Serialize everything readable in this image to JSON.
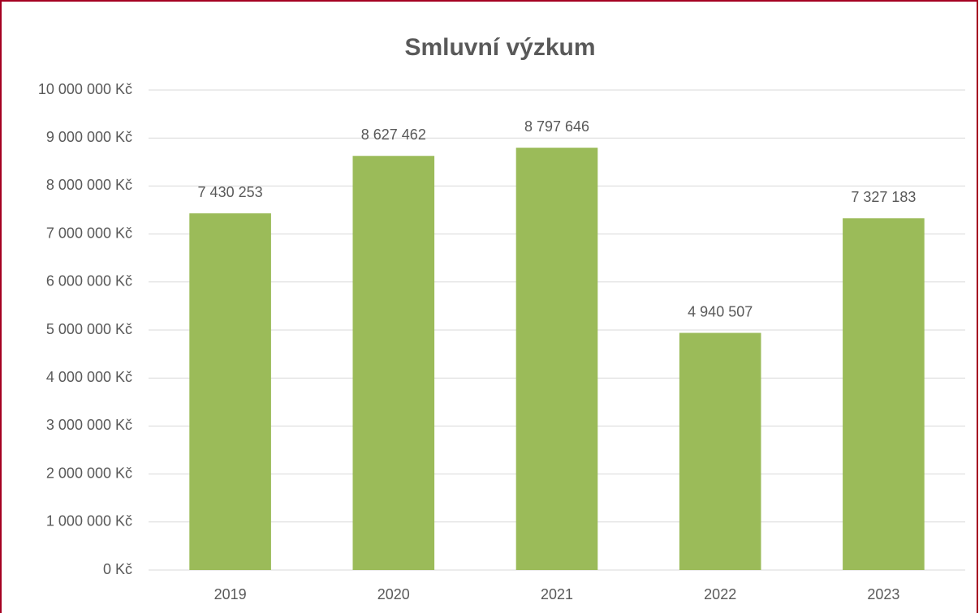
{
  "chart_data": {
    "type": "bar",
    "title": "Smluvní výzkum",
    "categories": [
      "2019",
      "2020",
      "2021",
      "2022",
      "2023"
    ],
    "values": [
      7430253,
      8627462,
      8797646,
      4940507,
      7327183
    ],
    "value_labels": [
      "7 430 253",
      "8 627 462",
      "8 797 646",
      "4 940 507",
      "7 327 183"
    ],
    "color": "#9bbb59",
    "ylim": [
      0,
      10000000
    ],
    "yticks": [
      {
        "value": 0,
        "label": "0 Kč"
      },
      {
        "value": 1000000,
        "label": "1 000 000 Kč"
      },
      {
        "value": 2000000,
        "label": "2 000 000 Kč"
      },
      {
        "value": 3000000,
        "label": "3 000 000 Kč"
      },
      {
        "value": 4000000,
        "label": "4 000 000 Kč"
      },
      {
        "value": 5000000,
        "label": "5 000 000 Kč"
      },
      {
        "value": 6000000,
        "label": "6 000 000 Kč"
      },
      {
        "value": 7000000,
        "label": "7 000 000 Kč"
      },
      {
        "value": 8000000,
        "label": "8 000 000 Kč"
      },
      {
        "value": 9000000,
        "label": "9 000 000 Kč"
      },
      {
        "value": 10000000,
        "label": "10 000 000 Kč"
      }
    ],
    "grid": true
  }
}
